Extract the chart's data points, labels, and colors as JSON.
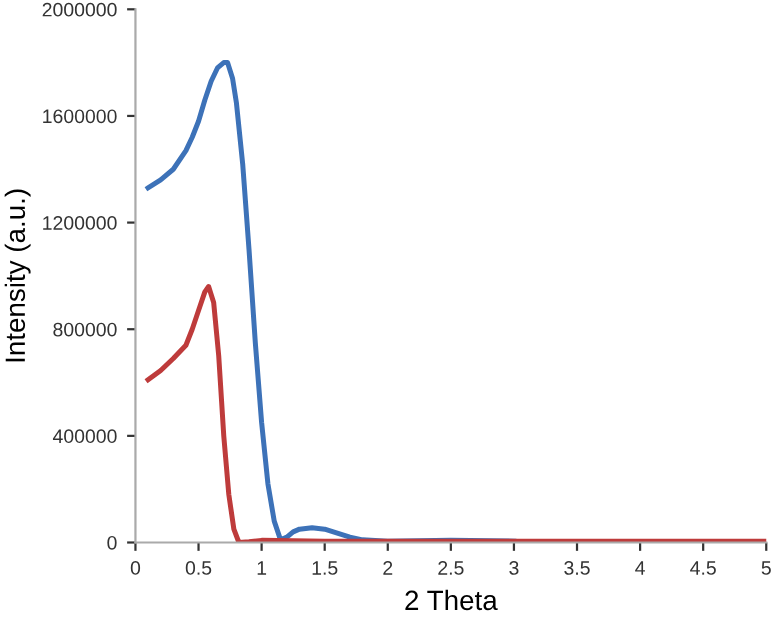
{
  "chart_data": {
    "type": "line",
    "xlabel": "2 Theta",
    "ylabel": "Intensity (a.u.)",
    "xlim": [
      0,
      5
    ],
    "ylim": [
      0,
      2000000
    ],
    "xticks": [
      0,
      0.5,
      1,
      1.5,
      2,
      2.5,
      3,
      3.5,
      4,
      4.5,
      5
    ],
    "yticks": [
      0,
      400000,
      800000,
      1200000,
      1600000,
      2000000
    ],
    "grid": false,
    "legend": false,
    "marker": "none",
    "line_style": "solid",
    "series": [
      {
        "color": "#3d72b8",
        "x": [
          0.1,
          0.2,
          0.3,
          0.4,
          0.45,
          0.5,
          0.55,
          0.6,
          0.65,
          0.7,
          0.73,
          0.77,
          0.8,
          0.85,
          0.9,
          0.95,
          1.0,
          1.05,
          1.1,
          1.15,
          1.2,
          1.25,
          1.3,
          1.4,
          1.5,
          1.6,
          1.7,
          1.8,
          2.0,
          2.5,
          3.0
        ],
        "values": [
          1330000,
          1360000,
          1400000,
          1470000,
          1520000,
          1580000,
          1660000,
          1730000,
          1780000,
          1800000,
          1800000,
          1740000,
          1650000,
          1420000,
          1100000,
          750000,
          450000,
          220000,
          80000,
          10000,
          20000,
          40000,
          50000,
          55000,
          50000,
          35000,
          20000,
          10000,
          5000,
          8000,
          5000
        ]
      },
      {
        "color": "#be3b3b",
        "x": [
          0.1,
          0.2,
          0.3,
          0.4,
          0.45,
          0.5,
          0.55,
          0.58,
          0.62,
          0.66,
          0.7,
          0.74,
          0.78,
          0.82,
          0.9,
          1.0,
          1.5,
          2.0,
          3.0,
          4.0,
          5.0
        ],
        "values": [
          610000,
          645000,
          690000,
          740000,
          800000,
          870000,
          940000,
          960000,
          900000,
          700000,
          400000,
          180000,
          50000,
          0,
          3000,
          8000,
          5000,
          5000,
          5000,
          5000,
          5000
        ]
      }
    ]
  }
}
